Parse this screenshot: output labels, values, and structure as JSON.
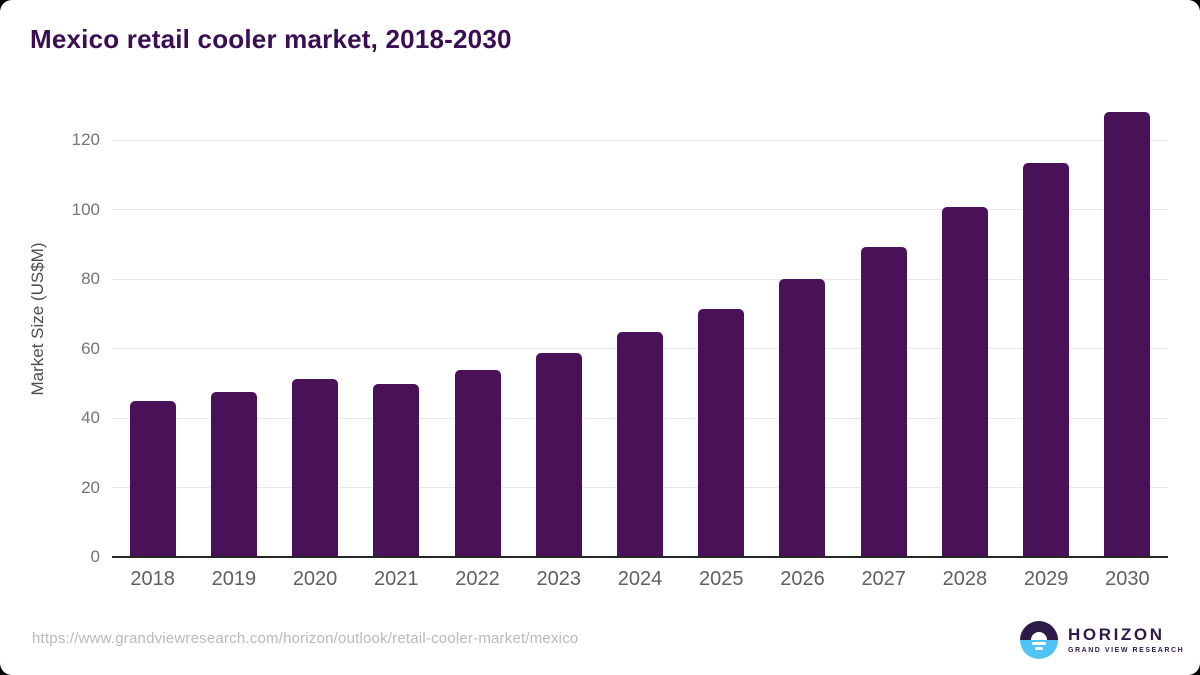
{
  "title": "Mexico retail cooler market, 2018-2030",
  "chart_data": {
    "type": "bar",
    "title": "Mexico retail cooler market, 2018-2030",
    "categories": [
      "2018",
      "2019",
      "2020",
      "2021",
      "2022",
      "2023",
      "2024",
      "2025",
      "2026",
      "2027",
      "2028",
      "2029",
      "2030"
    ],
    "values": [
      44.9,
      47.5,
      51.2,
      49.7,
      53.8,
      58.6,
      64.8,
      71.3,
      79.9,
      89.2,
      100.6,
      113.5,
      128.2
    ],
    "xlabel": "",
    "ylabel": "Market Size (US$M)",
    "ylim": [
      0,
      130
    ],
    "yticks": [
      0,
      20,
      40,
      60,
      80,
      100,
      120
    ],
    "grid": "horizontal-only",
    "legend": "none",
    "bar_color": "#481158"
  },
  "footer": {
    "source_url": "https://www.grandviewresearch.com/horizon/outlook/retail-cooler-market/mexico",
    "logo": {
      "name": "HORIZON",
      "subtitle": "GRAND VIEW RESEARCH"
    }
  },
  "colors": {
    "title_text": "#3a0e52",
    "bar": "#481158",
    "axis_line": "#262626",
    "gridline": "#e9e9e9",
    "y_tick_text": "#757575",
    "x_tick_text": "#5f5f5f",
    "url_text": "#b9b9b9",
    "logo_purple": "#2e1a47",
    "logo_blue": "#4fc3f7"
  }
}
